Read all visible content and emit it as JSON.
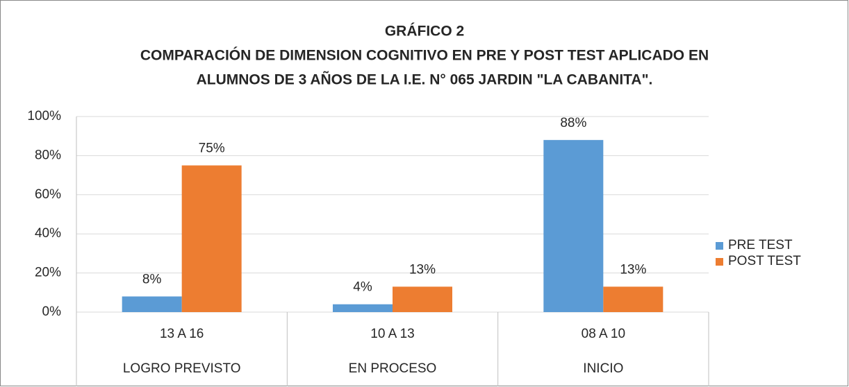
{
  "chart_data": {
    "type": "bar",
    "title": [
      "GRÁFICO 2",
      "COMPARACIÓN DE DIMENSION COGNITIVO EN PRE Y POST TEST APLICADO EN",
      "ALUMNOS DE 3 AÑOS DE LA I.E. N° 065  JARDIN \"LA CABANITA\"."
    ],
    "categories": [
      "13 A 16",
      "10 A 13",
      "08 A 10"
    ],
    "category_groups": [
      "LOGRO PREVISTO",
      "EN PROCESO",
      "INICIO"
    ],
    "series": [
      {
        "name": "PRE TEST",
        "color": "#5b9bd5",
        "values": [
          8,
          4,
          88
        ],
        "value_labels": [
          "8%",
          "4%",
          "88%"
        ]
      },
      {
        "name": "POST TEST",
        "color": "#ed7d31",
        "values": [
          75,
          13,
          13
        ],
        "value_labels": [
          "75%",
          "13%",
          "13%"
        ]
      }
    ],
    "ylim": [
      0,
      100
    ],
    "yticks": [
      {
        "value": 0,
        "label": "0%"
      },
      {
        "value": 20,
        "label": "20%"
      },
      {
        "value": 40,
        "label": "40%"
      },
      {
        "value": 60,
        "label": "60%"
      },
      {
        "value": 80,
        "label": "80%"
      },
      {
        "value": 100,
        "label": "100%"
      }
    ],
    "grid": true,
    "legend": "right"
  }
}
